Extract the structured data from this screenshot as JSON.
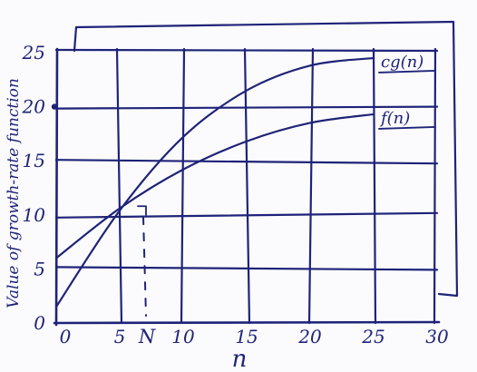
{
  "chart_data": {
    "type": "line",
    "ylabel": "Value of growth-rate function",
    "xlabel": "n",
    "xlim": [
      0,
      30
    ],
    "ylim": [
      0,
      25
    ],
    "x_ticks": [
      "0",
      "5",
      "10",
      "15",
      "20",
      "25",
      "30"
    ],
    "y_ticks": [
      "0",
      "5",
      "10",
      "15",
      "20",
      "25"
    ],
    "marker_label": "N",
    "marker_x": 7,
    "grid": true,
    "series": [
      {
        "name": "c·g(n)",
        "label_text": "cg(n)",
        "x": [
          0,
          5,
          10,
          15,
          20,
          25
        ],
        "y": [
          1.5,
          10.4,
          17.2,
          21.5,
          23.8,
          24.5
        ]
      },
      {
        "name": "f(n)",
        "label_text": "f(n)",
        "x": [
          0,
          5,
          10,
          15,
          20,
          25
        ],
        "y": [
          6.0,
          10.6,
          14.2,
          16.8,
          18.5,
          19.3
        ]
      }
    ],
    "colors": {
      "ink": "#1f2378"
    }
  }
}
